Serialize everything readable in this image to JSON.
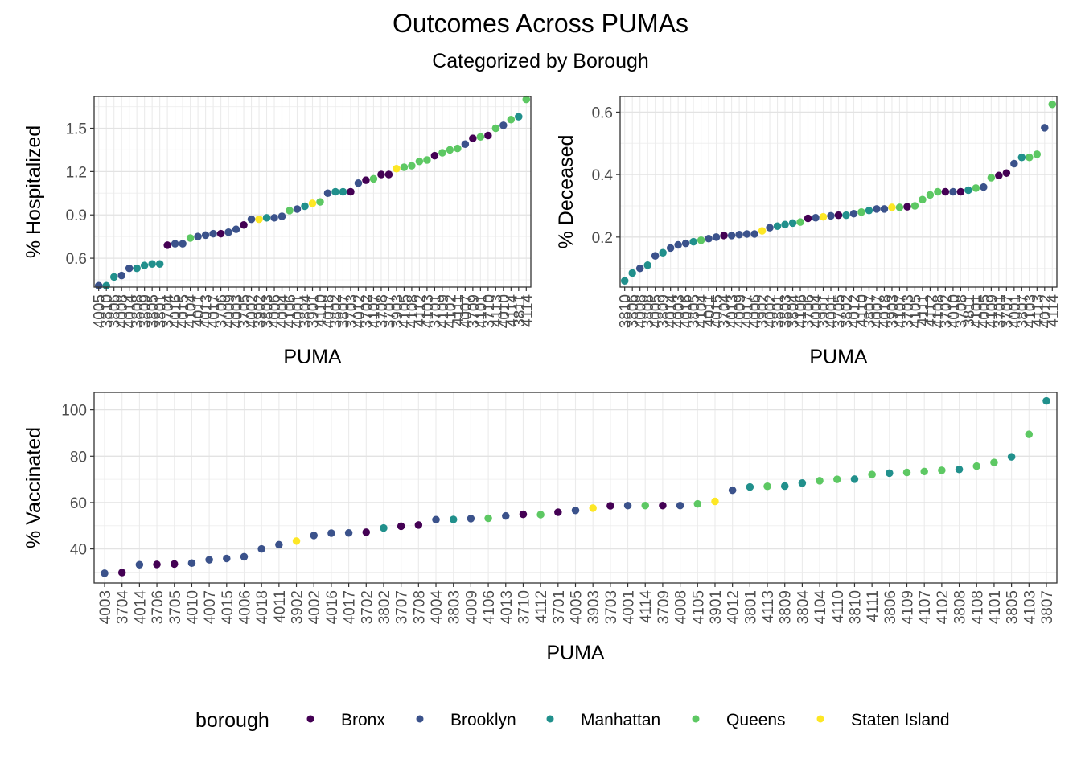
{
  "page": {
    "title": "Outcomes Across PUMAs",
    "subtitle": "Categorized by Borough"
  },
  "legend": {
    "title": "borough",
    "items": [
      {
        "name": "Bronx",
        "color": "#440154"
      },
      {
        "name": "Brooklyn",
        "color": "#3B528B"
      },
      {
        "name": "Manhattan",
        "color": "#21908C"
      },
      {
        "name": "Queens",
        "color": "#5DC863"
      },
      {
        "name": "Staten Island",
        "color": "#FDE725"
      }
    ]
  },
  "chart_data": [
    {
      "type": "scatter",
      "xlabel": "PUMA",
      "ylabel": "% Hospitalized",
      "ylim": [
        0.4,
        1.72
      ],
      "yticks": [
        0.6,
        0.9,
        1.2,
        1.5
      ],
      "ytick_labels": [
        "0.6",
        "0.9",
        "1.2",
        "1.5"
      ],
      "grid": true,
      "tick_labels_overlap": true,
      "points": [
        {
          "puma": "4005",
          "value": 0.41,
          "borough": "Brooklyn"
        },
        {
          "puma": "3810",
          "value": 0.41,
          "borough": "Manhattan"
        },
        {
          "puma": "3806",
          "value": 0.47,
          "borough": "Manhattan"
        },
        {
          "puma": "4008",
          "value": 0.48,
          "borough": "Brooklyn"
        },
        {
          "puma": "4014",
          "value": 0.53,
          "borough": "Brooklyn"
        },
        {
          "puma": "3808",
          "value": 0.53,
          "borough": "Manhattan"
        },
        {
          "puma": "3809",
          "value": 0.55,
          "borough": "Manhattan"
        },
        {
          "puma": "3805",
          "value": 0.56,
          "borough": "Manhattan"
        },
        {
          "puma": "3801",
          "value": 0.56,
          "borough": "Manhattan"
        },
        {
          "puma": "3704",
          "value": 0.69,
          "borough": "Bronx"
        },
        {
          "puma": "4016",
          "value": 0.7,
          "borough": "Brooklyn"
        },
        {
          "puma": "4015",
          "value": 0.7,
          "borough": "Brooklyn"
        },
        {
          "puma": "4104",
          "value": 0.74,
          "borough": "Queens"
        },
        {
          "puma": "4011",
          "value": 0.75,
          "borough": "Brooklyn"
        },
        {
          "puma": "4013",
          "value": 0.76,
          "borough": "Brooklyn"
        },
        {
          "puma": "4017",
          "value": 0.77,
          "borough": "Brooklyn"
        },
        {
          "puma": "3706",
          "value": 0.77,
          "borough": "Bronx"
        },
        {
          "puma": "4009",
          "value": 0.78,
          "borough": "Brooklyn"
        },
        {
          "puma": "4003",
          "value": 0.8,
          "borough": "Brooklyn"
        },
        {
          "puma": "3705",
          "value": 0.83,
          "borough": "Bronx"
        },
        {
          "puma": "4002",
          "value": 0.87,
          "borough": "Brooklyn"
        },
        {
          "puma": "3902",
          "value": 0.87,
          "borough": "Staten Island"
        },
        {
          "puma": "3803",
          "value": 0.88,
          "borough": "Manhattan"
        },
        {
          "puma": "4006",
          "value": 0.88,
          "borough": "Brooklyn"
        },
        {
          "puma": "4004",
          "value": 0.89,
          "borough": "Brooklyn"
        },
        {
          "puma": "4106",
          "value": 0.93,
          "borough": "Queens"
        },
        {
          "puma": "4001",
          "value": 0.94,
          "borough": "Brooklyn"
        },
        {
          "puma": "3804",
          "value": 0.96,
          "borough": "Manhattan"
        },
        {
          "puma": "3901",
          "value": 0.98,
          "borough": "Staten Island"
        },
        {
          "puma": "4110",
          "value": 0.99,
          "borough": "Queens"
        },
        {
          "puma": "4018",
          "value": 1.05,
          "borough": "Brooklyn"
        },
        {
          "puma": "3802",
          "value": 1.06,
          "borough": "Manhattan"
        },
        {
          "puma": "3807",
          "value": 1.06,
          "borough": "Manhattan"
        },
        {
          "puma": "3703",
          "value": 1.06,
          "borough": "Bronx"
        },
        {
          "puma": "4012",
          "value": 1.12,
          "borough": "Brooklyn"
        },
        {
          "puma": "3702",
          "value": 1.14,
          "borough": "Bronx"
        },
        {
          "puma": "4107",
          "value": 1.15,
          "borough": "Queens"
        },
        {
          "puma": "3708",
          "value": 1.18,
          "borough": "Bronx"
        },
        {
          "puma": "3707",
          "value": 1.18,
          "borough": "Bronx"
        },
        {
          "puma": "3903",
          "value": 1.22,
          "borough": "Staten Island"
        },
        {
          "puma": "4105",
          "value": 1.23,
          "borough": "Queens"
        },
        {
          "puma": "4108",
          "value": 1.24,
          "borough": "Queens"
        },
        {
          "puma": "4112",
          "value": 1.27,
          "borough": "Queens"
        },
        {
          "puma": "4103",
          "value": 1.28,
          "borough": "Queens"
        },
        {
          "puma": "3701",
          "value": 1.31,
          "borough": "Bronx"
        },
        {
          "puma": "4109",
          "value": 1.33,
          "borough": "Queens"
        },
        {
          "puma": "4102",
          "value": 1.35,
          "borough": "Queens"
        },
        {
          "puma": "4111",
          "value": 1.36,
          "borough": "Queens"
        },
        {
          "puma": "4007",
          "value": 1.39,
          "borough": "Brooklyn"
        },
        {
          "puma": "3709",
          "value": 1.43,
          "borough": "Bronx"
        },
        {
          "puma": "4101",
          "value": 1.44,
          "borough": "Queens"
        },
        {
          "puma": "3710",
          "value": 1.45,
          "borough": "Bronx"
        },
        {
          "puma": "4113",
          "value": 1.5,
          "borough": "Queens"
        },
        {
          "puma": "4010",
          "value": 1.52,
          "borough": "Brooklyn"
        },
        {
          "puma": "4114",
          "value": 1.56,
          "borough": "Queens"
        },
        {
          "puma": "3811",
          "value": 1.58,
          "borough": "Manhattan"
        },
        {
          "puma": "4114",
          "value": 1.7,
          "borough": "Queens"
        }
      ]
    },
    {
      "type": "scatter",
      "xlabel": "PUMA",
      "ylabel": "% Deceased",
      "ylim": [
        0.04,
        0.65
      ],
      "yticks": [
        0.2,
        0.4,
        0.6
      ],
      "ytick_labels": [
        "0.2",
        "0.4",
        "0.6"
      ],
      "grid": true,
      "tick_labels_overlap": true,
      "points": [
        {
          "puma": "3810",
          "value": 0.06,
          "borough": "Manhattan"
        },
        {
          "puma": "3806",
          "value": 0.085,
          "borough": "Manhattan"
        },
        {
          "puma": "4008",
          "value": 0.1,
          "borough": "Brooklyn"
        },
        {
          "puma": "3808",
          "value": 0.11,
          "borough": "Manhattan"
        },
        {
          "puma": "4005",
          "value": 0.14,
          "borough": "Brooklyn"
        },
        {
          "puma": "3809",
          "value": 0.15,
          "borough": "Manhattan"
        },
        {
          "puma": "4014",
          "value": 0.165,
          "borough": "Brooklyn"
        },
        {
          "puma": "4003",
          "value": 0.175,
          "borough": "Brooklyn"
        },
        {
          "puma": "4016",
          "value": 0.18,
          "borough": "Brooklyn"
        },
        {
          "puma": "3805",
          "value": 0.185,
          "borough": "Manhattan"
        },
        {
          "puma": "4104",
          "value": 0.19,
          "borough": "Queens"
        },
        {
          "puma": "4011",
          "value": 0.195,
          "borough": "Brooklyn"
        },
        {
          "puma": "4015",
          "value": 0.2,
          "borough": "Brooklyn"
        },
        {
          "puma": "3704",
          "value": 0.205,
          "borough": "Bronx"
        },
        {
          "puma": "4013",
          "value": 0.205,
          "borough": "Brooklyn"
        },
        {
          "puma": "4009",
          "value": 0.208,
          "borough": "Brooklyn"
        },
        {
          "puma": "4017",
          "value": 0.21,
          "borough": "Brooklyn"
        },
        {
          "puma": "4006",
          "value": 0.21,
          "borough": "Brooklyn"
        },
        {
          "puma": "3902",
          "value": 0.22,
          "borough": "Staten Island"
        },
        {
          "puma": "4002",
          "value": 0.23,
          "borough": "Brooklyn"
        },
        {
          "puma": "3801",
          "value": 0.235,
          "borough": "Manhattan"
        },
        {
          "puma": "3803",
          "value": 0.24,
          "borough": "Manhattan"
        },
        {
          "puma": "3804",
          "value": 0.245,
          "borough": "Manhattan"
        },
        {
          "puma": "4106",
          "value": 0.248,
          "borough": "Queens"
        },
        {
          "puma": "3706",
          "value": 0.26,
          "borough": "Bronx"
        },
        {
          "puma": "4004",
          "value": 0.262,
          "borough": "Brooklyn"
        },
        {
          "puma": "3901",
          "value": 0.265,
          "borough": "Staten Island"
        },
        {
          "puma": "4001",
          "value": 0.268,
          "borough": "Brooklyn"
        },
        {
          "puma": "3705",
          "value": 0.27,
          "borough": "Bronx"
        },
        {
          "puma": "3802",
          "value": 0.27,
          "borough": "Manhattan"
        },
        {
          "puma": "4012",
          "value": 0.275,
          "borough": "Brooklyn"
        },
        {
          "puma": "4110",
          "value": 0.28,
          "borough": "Queens"
        },
        {
          "puma": "3807",
          "value": 0.285,
          "borough": "Manhattan"
        },
        {
          "puma": "4007",
          "value": 0.29,
          "borough": "Brooklyn"
        },
        {
          "puma": "4018",
          "value": 0.29,
          "borough": "Brooklyn"
        },
        {
          "puma": "3903",
          "value": 0.295,
          "borough": "Staten Island"
        },
        {
          "puma": "4107",
          "value": 0.295,
          "borough": "Queens"
        },
        {
          "puma": "3703",
          "value": 0.297,
          "borough": "Bronx"
        },
        {
          "puma": "4105",
          "value": 0.3,
          "borough": "Queens"
        },
        {
          "puma": "4111",
          "value": 0.32,
          "borough": "Queens"
        },
        {
          "puma": "4112",
          "value": 0.335,
          "borough": "Queens"
        },
        {
          "puma": "4108",
          "value": 0.345,
          "borough": "Queens"
        },
        {
          "puma": "3702",
          "value": 0.345,
          "borough": "Bronx"
        },
        {
          "puma": "4010",
          "value": 0.345,
          "borough": "Brooklyn"
        },
        {
          "puma": "3708",
          "value": 0.345,
          "borough": "Bronx"
        },
        {
          "puma": "3811",
          "value": 0.35,
          "borough": "Manhattan"
        },
        {
          "puma": "4101",
          "value": 0.357,
          "borough": "Queens"
        },
        {
          "puma": "4005",
          "value": 0.36,
          "borough": "Brooklyn"
        },
        {
          "puma": "4109",
          "value": 0.39,
          "borough": "Queens"
        },
        {
          "puma": "3701",
          "value": 0.397,
          "borough": "Bronx"
        },
        {
          "puma": "3707",
          "value": 0.405,
          "borough": "Bronx"
        },
        {
          "puma": "4001",
          "value": 0.435,
          "borough": "Brooklyn"
        },
        {
          "puma": "3807",
          "value": 0.455,
          "borough": "Manhattan"
        },
        {
          "puma": "4103",
          "value": 0.455,
          "borough": "Queens"
        },
        {
          "puma": "4113",
          "value": 0.465,
          "borough": "Queens"
        },
        {
          "puma": "4012",
          "value": 0.55,
          "borough": "Brooklyn"
        },
        {
          "puma": "4114",
          "value": 0.625,
          "borough": "Queens"
        }
      ]
    },
    {
      "type": "scatter",
      "xlabel": "PUMA",
      "ylabel": "% Vaccinated",
      "ylim": [
        25.3,
        107.5
      ],
      "yticks": [
        40,
        60,
        80,
        100
      ],
      "ytick_labels": [
        "40",
        "60",
        "80",
        "100"
      ],
      "grid": true,
      "tick_labels_overlap": false,
      "points": [
        {
          "puma": "4003",
          "value": 29.5,
          "borough": "Brooklyn"
        },
        {
          "puma": "3704",
          "value": 29.8,
          "borough": "Bronx"
        },
        {
          "puma": "4014",
          "value": 33.2,
          "borough": "Brooklyn"
        },
        {
          "puma": "3706",
          "value": 33.3,
          "borough": "Bronx"
        },
        {
          "puma": "3705",
          "value": 33.5,
          "borough": "Bronx"
        },
        {
          "puma": "4010",
          "value": 33.9,
          "borough": "Brooklyn"
        },
        {
          "puma": "4007",
          "value": 35.3,
          "borough": "Brooklyn"
        },
        {
          "puma": "4015",
          "value": 35.9,
          "borough": "Brooklyn"
        },
        {
          "puma": "4006",
          "value": 36.6,
          "borough": "Brooklyn"
        },
        {
          "puma": "4018",
          "value": 40.0,
          "borough": "Brooklyn"
        },
        {
          "puma": "4011",
          "value": 41.8,
          "borough": "Brooklyn"
        },
        {
          "puma": "3902",
          "value": 43.4,
          "borough": "Staten Island"
        },
        {
          "puma": "4002",
          "value": 45.8,
          "borough": "Brooklyn"
        },
        {
          "puma": "4016",
          "value": 46.8,
          "borough": "Brooklyn"
        },
        {
          "puma": "4017",
          "value": 46.9,
          "borough": "Brooklyn"
        },
        {
          "puma": "3702",
          "value": 47.2,
          "borough": "Bronx"
        },
        {
          "puma": "3802",
          "value": 49.0,
          "borough": "Manhattan"
        },
        {
          "puma": "3707",
          "value": 49.8,
          "borough": "Bronx"
        },
        {
          "puma": "3708",
          "value": 50.3,
          "borough": "Bronx"
        },
        {
          "puma": "4004",
          "value": 52.6,
          "borough": "Brooklyn"
        },
        {
          "puma": "3803",
          "value": 52.7,
          "borough": "Manhattan"
        },
        {
          "puma": "4009",
          "value": 53.1,
          "borough": "Brooklyn"
        },
        {
          "puma": "4106",
          "value": 53.2,
          "borough": "Queens"
        },
        {
          "puma": "4013",
          "value": 54.2,
          "borough": "Brooklyn"
        },
        {
          "puma": "3710",
          "value": 54.9,
          "borough": "Bronx"
        },
        {
          "puma": "4112",
          "value": 54.8,
          "borough": "Queens"
        },
        {
          "puma": "3701",
          "value": 55.8,
          "borough": "Bronx"
        },
        {
          "puma": "4005",
          "value": 56.6,
          "borough": "Brooklyn"
        },
        {
          "puma": "3903",
          "value": 57.6,
          "borough": "Staten Island"
        },
        {
          "puma": "3703",
          "value": 58.6,
          "borough": "Bronx"
        },
        {
          "puma": "4001",
          "value": 58.7,
          "borough": "Brooklyn"
        },
        {
          "puma": "4114",
          "value": 58.7,
          "borough": "Queens"
        },
        {
          "puma": "3709",
          "value": 58.7,
          "borough": "Bronx"
        },
        {
          "puma": "4008",
          "value": 58.7,
          "borough": "Brooklyn"
        },
        {
          "puma": "4105",
          "value": 59.4,
          "borough": "Queens"
        },
        {
          "puma": "3901",
          "value": 60.5,
          "borough": "Staten Island"
        },
        {
          "puma": "4012",
          "value": 65.3,
          "borough": "Brooklyn"
        },
        {
          "puma": "3801",
          "value": 66.7,
          "borough": "Manhattan"
        },
        {
          "puma": "4113",
          "value": 67.0,
          "borough": "Queens"
        },
        {
          "puma": "3809",
          "value": 67.1,
          "borough": "Manhattan"
        },
        {
          "puma": "3804",
          "value": 68.4,
          "borough": "Manhattan"
        },
        {
          "puma": "4104",
          "value": 69.4,
          "borough": "Queens"
        },
        {
          "puma": "4110",
          "value": 70.0,
          "borough": "Queens"
        },
        {
          "puma": "3810",
          "value": 70.1,
          "borough": "Manhattan"
        },
        {
          "puma": "4111",
          "value": 72.1,
          "borough": "Queens"
        },
        {
          "puma": "3806",
          "value": 72.7,
          "borough": "Manhattan"
        },
        {
          "puma": "4109",
          "value": 73.0,
          "borough": "Queens"
        },
        {
          "puma": "4107",
          "value": 73.4,
          "borough": "Queens"
        },
        {
          "puma": "4102",
          "value": 73.9,
          "borough": "Queens"
        },
        {
          "puma": "3808",
          "value": 74.3,
          "borough": "Manhattan"
        },
        {
          "puma": "4108",
          "value": 75.7,
          "borough": "Queens"
        },
        {
          "puma": "4101",
          "value": 77.3,
          "borough": "Queens"
        },
        {
          "puma": "3805",
          "value": 79.7,
          "borough": "Manhattan"
        },
        {
          "puma": "4103",
          "value": 89.4,
          "borough": "Queens"
        },
        {
          "puma": "3807",
          "value": 103.8,
          "borough": "Manhattan"
        }
      ]
    }
  ]
}
